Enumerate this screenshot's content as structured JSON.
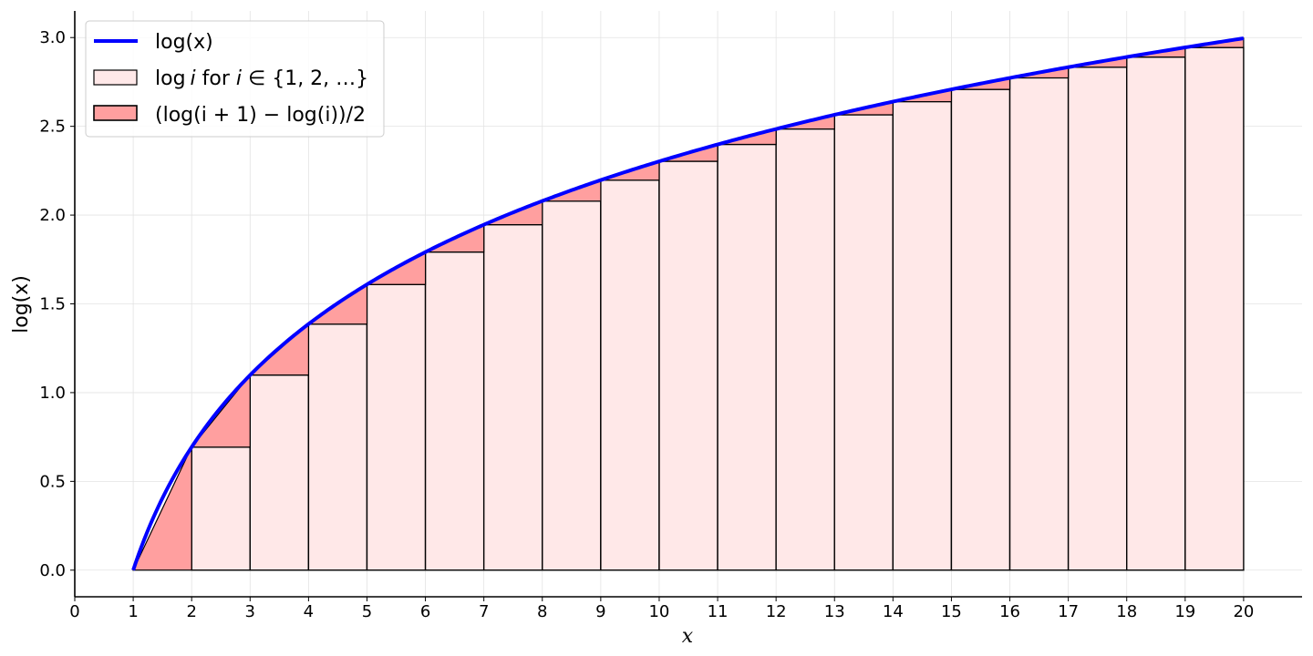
{
  "chart_data": {
    "type": "area",
    "xlabel": "x",
    "ylabel": "log(x)",
    "xlim": [
      0,
      21
    ],
    "ylim": [
      -0.15,
      3.15
    ],
    "xticks": [
      0,
      1,
      2,
      3,
      4,
      5,
      6,
      7,
      8,
      9,
      10,
      11,
      12,
      13,
      14,
      15,
      16,
      17,
      18,
      19,
      20
    ],
    "yticks": [
      0.0,
      0.5,
      1.0,
      1.5,
      2.0,
      2.5,
      3.0
    ],
    "ytick_labels": [
      "0.0",
      "0.5",
      "1.0",
      "1.5",
      "2.0",
      "2.5",
      "3.0"
    ],
    "grid": true,
    "legend_position": "top-left",
    "series": [
      {
        "name": "log(x)",
        "kind": "line",
        "x_range": [
          1,
          20
        ],
        "color": "#0000ff"
      },
      {
        "name": "log i for i ∈ {1, 2, …}",
        "kind": "bars",
        "x": [
          1,
          2,
          3,
          4,
          5,
          6,
          7,
          8,
          9,
          10,
          11,
          12,
          13,
          14,
          15,
          16,
          17,
          18,
          19
        ],
        "values": [
          0.0,
          0.693,
          1.099,
          1.386,
          1.609,
          1.792,
          1.946,
          2.079,
          2.197,
          2.303,
          2.398,
          2.485,
          2.565,
          2.639,
          2.708,
          2.773,
          2.833,
          2.89,
          2.944
        ],
        "color": "#ffe8e8",
        "edgecolor": "#000000"
      },
      {
        "name": "(log(i + 1) − log(i))/2",
        "kind": "triangles",
        "x": [
          1,
          2,
          3,
          4,
          5,
          6,
          7,
          8,
          9,
          10,
          11,
          12,
          13,
          14,
          15,
          16,
          17,
          18,
          19
        ],
        "values": [
          0.347,
          0.203,
          0.144,
          0.112,
          0.091,
          0.077,
          0.067,
          0.059,
          0.053,
          0.048,
          0.044,
          0.04,
          0.037,
          0.034,
          0.032,
          0.03,
          0.029,
          0.027,
          0.026
        ],
        "color": "#ff9f9f"
      }
    ]
  },
  "legend": {
    "line_label": "log(x)",
    "bar_label_prefix": "log",
    "bar_label_var": "i",
    "bar_label_rest": " for ",
    "bar_label_set": " ∈ {1, 2, …}",
    "tri_label": "(log(i + 1) − log(i))/2"
  }
}
